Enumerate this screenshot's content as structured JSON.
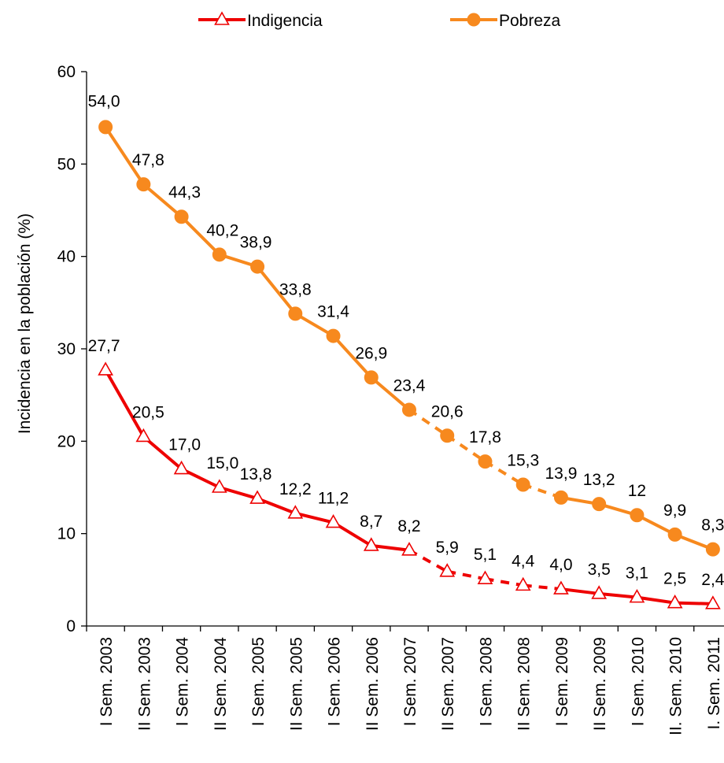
{
  "chart_data": {
    "type": "line",
    "title": "",
    "xlabel": "",
    "ylabel": "Incidencia en la población (%)",
    "ylim": [
      0,
      60
    ],
    "yticks": [
      "0",
      "10",
      "20",
      "30",
      "40",
      "50",
      "60"
    ],
    "grid": false,
    "legend_position": "top",
    "categories": [
      "I Sem. 2003",
      "II Sem. 2003",
      "I Sem. 2004",
      "II Sem. 2004",
      "I Sem. 2005",
      "II Sem. 2005",
      "I Sem. 2006",
      "II Sem. 2006",
      "I Sem. 2007",
      "II Sem. 2007",
      "I Sem. 2008",
      "II Sem. 2008",
      "I Sem. 2009",
      "II Sem. 2009",
      "I Sem. 2010",
      "II. Sem. 2010",
      "I. Sem. 2011"
    ],
    "dashed_segment": {
      "from_index": 8,
      "to_index": 12
    },
    "series": [
      {
        "name": "Indigencia",
        "color": "#ee0000",
        "marker": "triangle-open",
        "values": [
          27.7,
          20.5,
          17.0,
          15.0,
          13.8,
          12.2,
          11.2,
          8.7,
          8.2,
          5.9,
          5.1,
          4.4,
          4.0,
          3.5,
          3.1,
          2.5,
          2.4
        ],
        "labels": [
          "27,7",
          "20,5",
          "17,0",
          "15,0",
          "13,8",
          "12,2",
          "11,2",
          "8,7",
          "8,2",
          "5,9",
          "5,1",
          "4,4",
          "4,0",
          "3,5",
          "3,1",
          "2,5",
          "2,4"
        ]
      },
      {
        "name": "Pobreza",
        "color": "#f7891e",
        "marker": "circle-filled",
        "values": [
          54.0,
          47.8,
          44.3,
          40.2,
          38.9,
          33.8,
          31.4,
          26.9,
          23.4,
          20.6,
          17.8,
          15.3,
          13.9,
          13.2,
          12,
          9.9,
          8.3
        ],
        "labels": [
          "54,0",
          "47,8",
          "44,3",
          "40,2",
          "38,9",
          "33,8",
          "31,4",
          "26,9",
          "23,4",
          "20,6",
          "17,8",
          "15,3",
          "13,9",
          "13,2",
          "12",
          "9,9",
          "8,3"
        ]
      }
    ]
  }
}
